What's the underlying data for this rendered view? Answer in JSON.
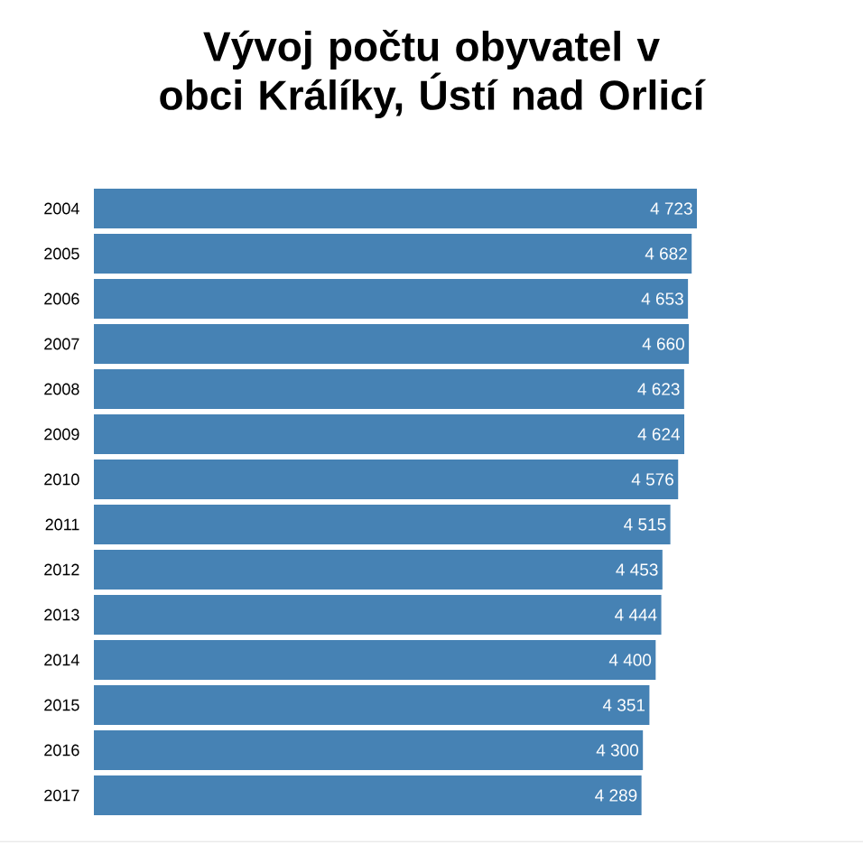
{
  "chart_data": {
    "type": "bar",
    "orientation": "horizontal",
    "title": "Vývoj počtu obyvatel v obci Králíky, Ústí nad Orlicí",
    "categories": [
      "2004",
      "2005",
      "2006",
      "2007",
      "2008",
      "2009",
      "2010",
      "2011",
      "2012",
      "2013",
      "2014",
      "2015",
      "2016",
      "2017"
    ],
    "values": [
      4723,
      4682,
      4653,
      4660,
      4623,
      4624,
      4576,
      4515,
      4453,
      4444,
      4400,
      4351,
      4300,
      4289
    ],
    "value_labels": [
      "4 723",
      "4 682",
      "4 653",
      "4 660",
      "4 623",
      "4 624",
      "4 576",
      "4 515",
      "4 453",
      "4 444",
      "4 400",
      "4 351",
      "4 300",
      "4 289"
    ],
    "color": "#4682b4"
  }
}
